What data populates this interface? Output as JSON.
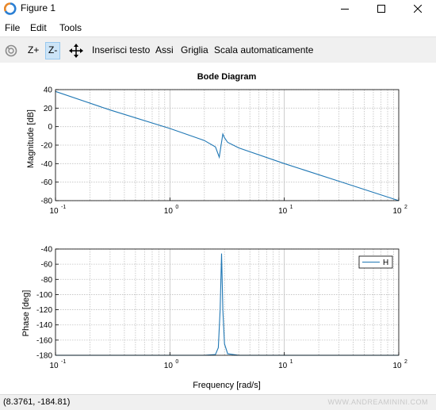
{
  "window": {
    "title": "Figure 1"
  },
  "menu": {
    "items": [
      "File",
      "Edit",
      "Tools"
    ]
  },
  "toolbar": {
    "zoom_in": "Z+",
    "zoom_out": "Z-",
    "insert_text": "Inserisci testo",
    "axes": "Assi",
    "grid": "Griglia",
    "autoscale": "Scala automaticamente"
  },
  "status": {
    "coordinates": "(8.3761, -184.81)",
    "watermark": "WWW.ANDREAMININI.COM"
  },
  "colors": {
    "line": "#1f77b4",
    "grid": "#c0c0c0",
    "toolbar_bg": "#f0f0f0",
    "pressed": "#cce4f7"
  },
  "chart_data": [
    {
      "type": "line",
      "title": "Bode Diagram",
      "xlabel": "",
      "ylabel": "Magnitude [dB]",
      "x_scale": "log",
      "xlim": [
        0.1,
        100
      ],
      "ylim": [
        -80,
        40
      ],
      "yticks": [
        40,
        20,
        0,
        -20,
        -40,
        -60,
        -80
      ],
      "xtick_labels": [
        "10",
        "10",
        "10",
        "10"
      ],
      "xtick_exponents": [
        "-1",
        "0",
        "1",
        "2"
      ],
      "grid": true,
      "series": [
        {
          "x": [
            0.1,
            0.3,
            1,
            2,
            2.5,
            2.7,
            2.8,
            2.9,
            3.0,
            3.2,
            4,
            10,
            30,
            100
          ],
          "y": [
            38,
            18,
            -2,
            -15,
            -22,
            -33,
            -20,
            -8,
            -12,
            -17,
            -23,
            -40,
            -59,
            -80
          ]
        }
      ]
    },
    {
      "type": "line",
      "title": "",
      "xlabel": "Frequency [rad/s]",
      "ylabel": "Phase [deg]",
      "x_scale": "log",
      "xlim": [
        0.1,
        100
      ],
      "ylim": [
        -180,
        -40
      ],
      "yticks": [
        -40,
        -60,
        -80,
        -100,
        -120,
        -140,
        -160,
        -180
      ],
      "xtick_labels": [
        "10",
        "10",
        "10",
        "10"
      ],
      "xtick_exponents": [
        "-1",
        "0",
        "1",
        "2"
      ],
      "grid": true,
      "legend": "top-right",
      "series": [
        {
          "name": "H",
          "x": [
            0.1,
            1,
            2,
            2.5,
            2.65,
            2.75,
            2.83,
            2.9,
            3.0,
            3.2,
            4,
            10,
            100
          ],
          "y": [
            -180,
            -180,
            -180,
            -179,
            -170,
            -120,
            -46,
            -120,
            -165,
            -178,
            -180,
            -180,
            -180
          ]
        }
      ]
    }
  ]
}
